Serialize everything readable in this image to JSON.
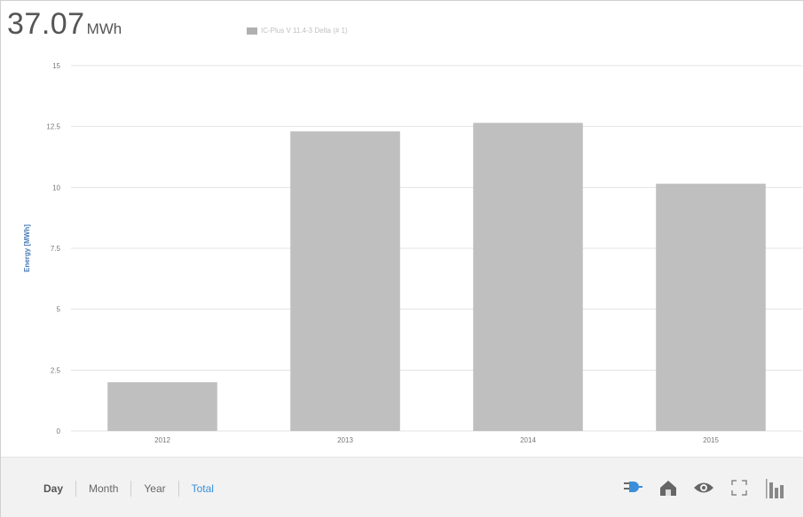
{
  "summary": {
    "value": "37.07",
    "unit": "MWh"
  },
  "legend": {
    "label": "IC-Plus V 11.4-3 Delta (# 1)",
    "color": "#b0b0b0"
  },
  "chart_data": {
    "type": "bar",
    "categories": [
      "2012",
      "2013",
      "2014",
      "2015"
    ],
    "values": [
      2.0,
      12.3,
      12.65,
      10.15
    ],
    "ylabel": "Energy [MWh]",
    "ylim": [
      0,
      15
    ],
    "yticks": [
      "0",
      "2.5",
      "5",
      "7.5",
      "10",
      "12.5",
      "15"
    ],
    "grid": true,
    "bar_color": "#bfbfbf"
  },
  "period_tabs": [
    "Day",
    "Month",
    "Year",
    "Total"
  ],
  "active_tab": "Day",
  "selected_tab": "Total",
  "tools": [
    "plug-icon",
    "house-icon",
    "eye-icon",
    "expand-icon",
    "bar-chart-icon"
  ],
  "colors": {
    "accent": "#3a8fd8",
    "axis_label": "#4a7db8"
  }
}
